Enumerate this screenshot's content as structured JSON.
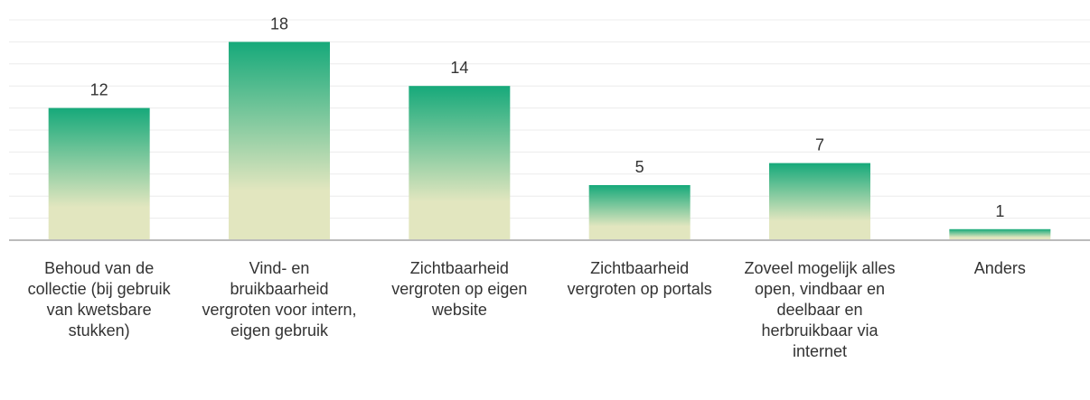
{
  "chart_data": {
    "type": "bar",
    "categories": [
      "Behoud van de collectie (bij gebruik van kwetsbare stukken)",
      "Vind- en bruikbaarheid vergroten voor intern, eigen gebruik",
      "Zichtbaarheid vergroten op eigen website",
      "Zichtbaarheid vergroten op portals",
      "Zoveel mogelijk alles open, vindbaar en deelbaar en herbruikbaar via internet",
      "Anders"
    ],
    "values": [
      12,
      18,
      14,
      5,
      7,
      1
    ],
    "color": "#16a97a",
    "gradient_end": "#e2e6bf",
    "ylim": [
      0,
      20
    ],
    "yticks": [
      0,
      2,
      4,
      6,
      8,
      10,
      12,
      14,
      16,
      18,
      20
    ],
    "grid": true
  }
}
